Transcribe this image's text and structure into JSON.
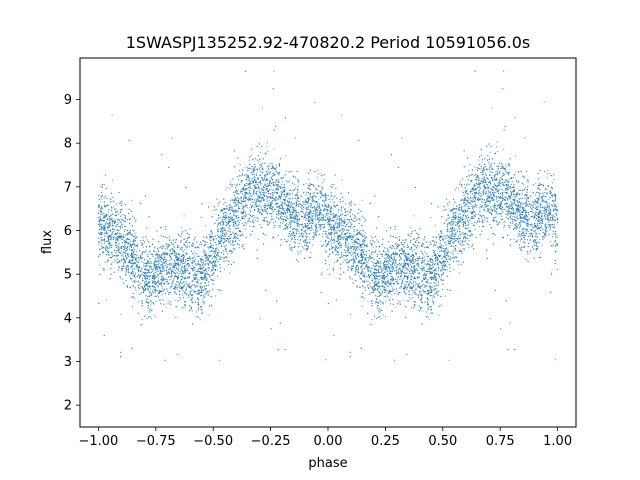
{
  "chart_data": {
    "type": "scatter",
    "title": "1SWASPJ135252.92-470820.2 Period 10591056.0s",
    "xlabel": "phase",
    "ylabel": "flux",
    "xlim": [
      -1.08,
      1.08
    ],
    "ylim": [
      1.5,
      9.95
    ],
    "xticks": [
      -1.0,
      -0.75,
      -0.5,
      -0.25,
      0.0,
      0.25,
      0.5,
      0.75,
      1.0
    ],
    "xtick_labels": [
      "−1.00",
      "−0.75",
      "−0.50",
      "−0.25",
      "0.00",
      "0.25",
      "0.50",
      "0.75",
      "1.00"
    ],
    "yticks": [
      2,
      3,
      4,
      5,
      6,
      7,
      8,
      9
    ],
    "ytick_labels": [
      "2",
      "3",
      "4",
      "5",
      "6",
      "7",
      "8",
      "9"
    ],
    "grid": false,
    "legend": false,
    "marker_color": "#1f77b4",
    "series": [
      {
        "trend": {
          "phase": [
            0.0,
            0.04,
            0.08,
            0.12,
            0.16,
            0.2,
            0.24,
            0.28,
            0.32,
            0.36,
            0.4,
            0.44,
            0.48,
            0.52,
            0.56,
            0.6,
            0.64,
            0.68,
            0.72,
            0.76,
            0.8,
            0.84,
            0.88,
            0.92,
            0.96,
            1.0
          ],
          "flux": [
            6.1,
            6.0,
            5.9,
            5.6,
            5.3,
            5.0,
            4.9,
            5.1,
            5.2,
            5.1,
            5.0,
            4.9,
            5.2,
            5.7,
            6.0,
            6.4,
            6.8,
            7.0,
            6.8,
            6.9,
            6.6,
            6.4,
            6.2,
            6.3,
            6.5,
            6.2
          ]
        },
        "scatter_sd": 0.42,
        "points_per_cycle": 6000
      }
    ]
  }
}
